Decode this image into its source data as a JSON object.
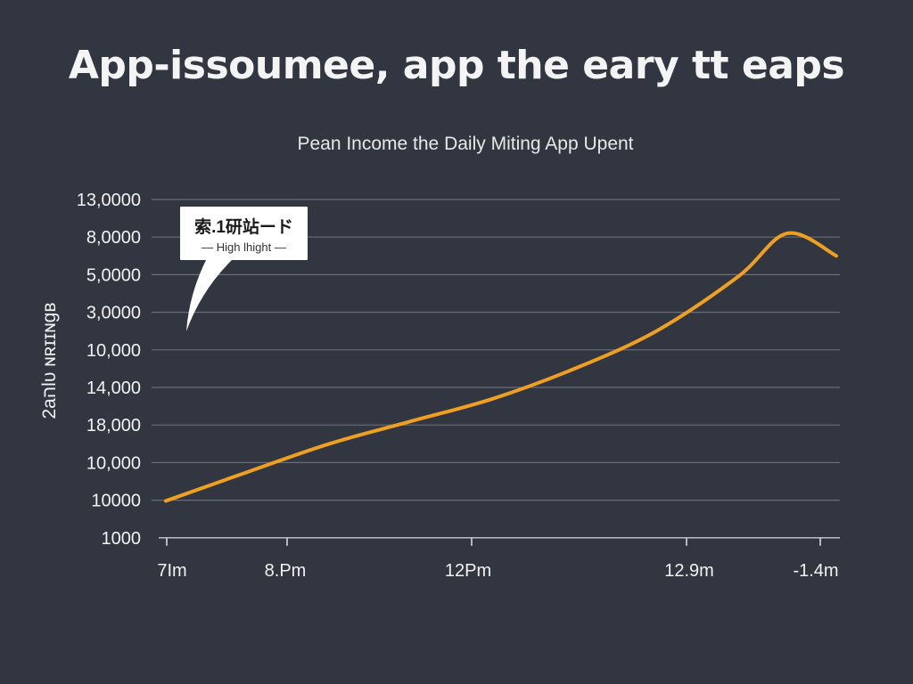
{
  "page": {
    "title": "App-issoumee, app the eary tt eaps",
    "subtitle": "Pean Income the Daily Miting App Upent"
  },
  "callout": {
    "title": "索.1研站ード",
    "subtitle": "— High lhight —"
  },
  "colors": {
    "background": "#323640",
    "line": "#f0a020",
    "grid": "#6a6e78",
    "text": "#f2f2f2"
  },
  "chart_data": {
    "type": "line",
    "title": "App-issoumee, app the eary tt eaps",
    "subtitle": "Pean Income the Daily Miting App Upent",
    "ylabel": "2aהlυ ɴʀɪɪɴɡʙ",
    "xlabel": "",
    "y_tick_labels": [
      "13,0000",
      "8,0000",
      "5,0000",
      "3,0000",
      "10,000",
      "14,000",
      "18,000",
      "10,000",
      "10000",
      "1000"
    ],
    "x_tick_labels": [
      "7Im",
      "8.Pm",
      "12Pm",
      "12.9m",
      "-1.4m"
    ],
    "x_tick_positions": [
      0,
      1,
      2,
      3,
      4
    ],
    "x_tick_marks": [
      0.0,
      0.98,
      2.0,
      3.1,
      4.0
    ],
    "grid": true,
    "legend": "none",
    "xlim": [
      0,
      4.1
    ],
    "ylim": [
      0,
      9
    ],
    "series": [
      {
        "x": [
          0.0,
          0.5,
          1.0,
          1.5,
          2.0,
          2.5,
          3.0,
          3.5,
          3.8,
          4.1
        ],
        "y": [
          0.98,
          1.75,
          2.5,
          3.1,
          3.7,
          4.5,
          5.5,
          6.95,
          8.1,
          7.5
        ]
      }
    ]
  }
}
